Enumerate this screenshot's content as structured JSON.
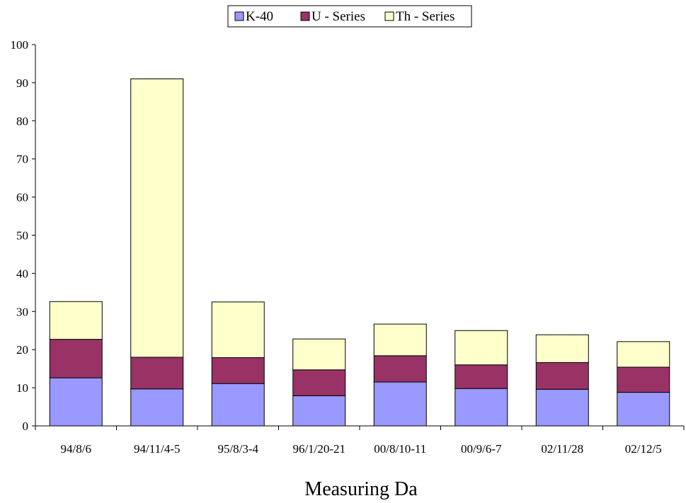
{
  "chart_data": {
    "type": "bar",
    "stacked": true,
    "categories": [
      "94/8/6",
      "94/11/4-5",
      "95/8/3-4",
      "96/1/20-21",
      "00/8/10-11",
      "00/9/6-7",
      "02/11/28",
      "02/12/5"
    ],
    "series": [
      {
        "name": "K-40",
        "color": "#9999ff",
        "values": [
          12.6,
          9.7,
          11.1,
          7.9,
          11.5,
          9.8,
          9.6,
          8.8
        ]
      },
      {
        "name": "U - Series",
        "color": "#993366",
        "values": [
          10.1,
          8.3,
          6.8,
          6.8,
          6.9,
          6.2,
          7.0,
          6.6
        ]
      },
      {
        "name": "Th - Series",
        "color": "#ffffcc",
        "values": [
          9.9,
          73.0,
          14.6,
          8.1,
          8.3,
          9.0,
          7.3,
          6.7
        ]
      }
    ],
    "xlabel": "Measuring Da",
    "ylabel": "",
    "ylim": [
      0,
      100
    ],
    "yticks": [
      "0",
      "10",
      "20",
      "30",
      "40",
      "50",
      "60",
      "70",
      "80",
      "90",
      "100"
    ],
    "grid": false,
    "legend_position": "top-center"
  }
}
